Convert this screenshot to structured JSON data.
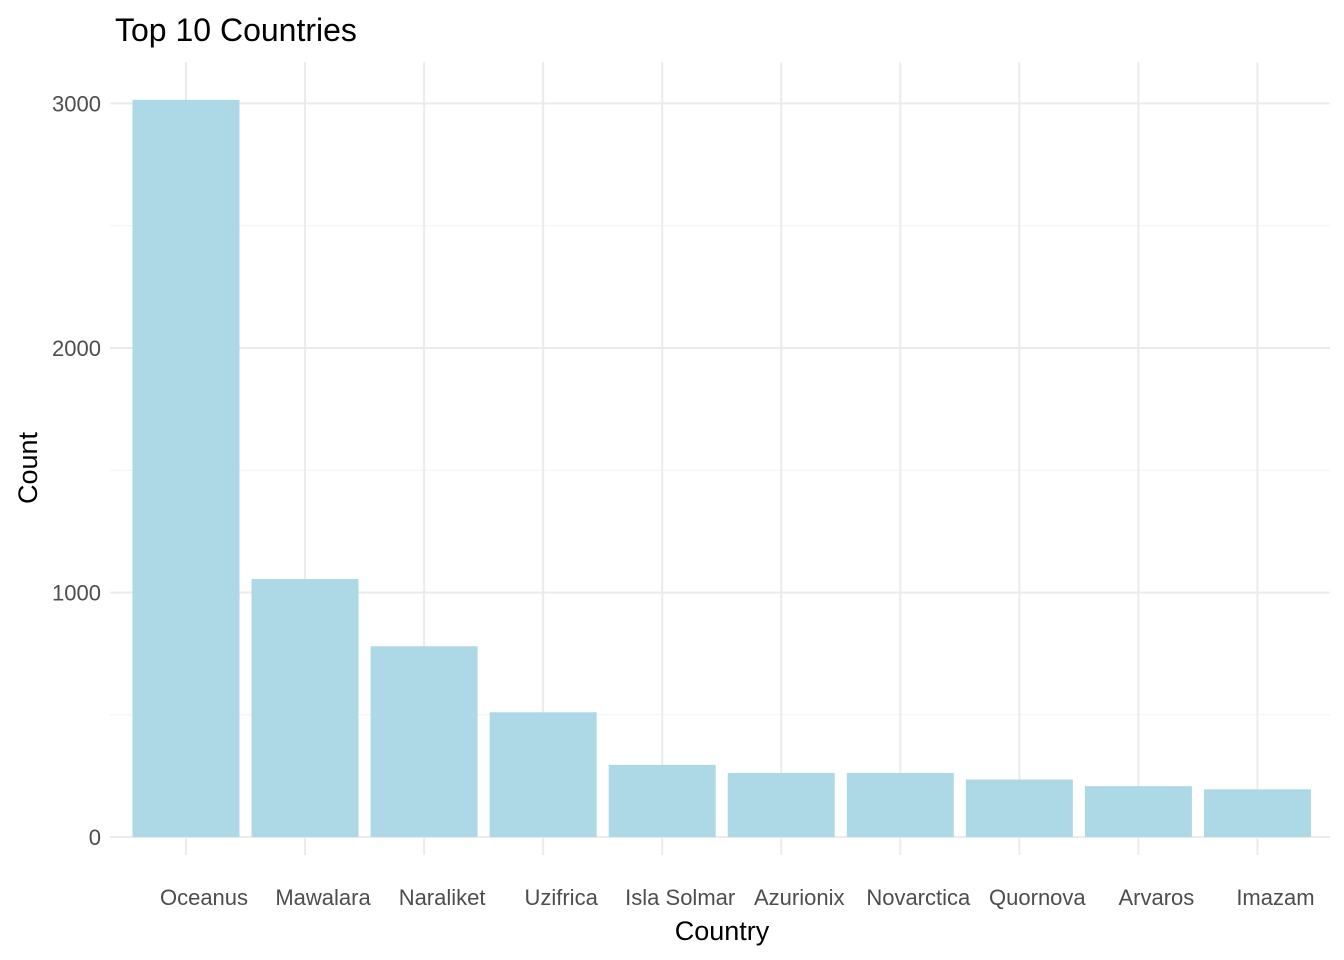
{
  "chart_data": {
    "type": "bar",
    "title": "Top 10 Countries",
    "xlabel": "Country",
    "ylabel": "Count",
    "categories": [
      "Oceanus",
      "Mawalara",
      "Naraliket",
      "Uzifrica",
      "Isla Solmar",
      "Azurionix",
      "Novarctica",
      "Quornova",
      "Arvaros",
      "Imazam"
    ],
    "values": [
      3015,
      1055,
      780,
      510,
      295,
      262,
      262,
      235,
      208,
      195
    ],
    "ylim": [
      0,
      3100
    ],
    "yticks": [
      0,
      1000,
      2000,
      3000
    ],
    "yminor": [
      500,
      1500,
      2500
    ],
    "grid": true,
    "bar_color": "#add8e6"
  }
}
